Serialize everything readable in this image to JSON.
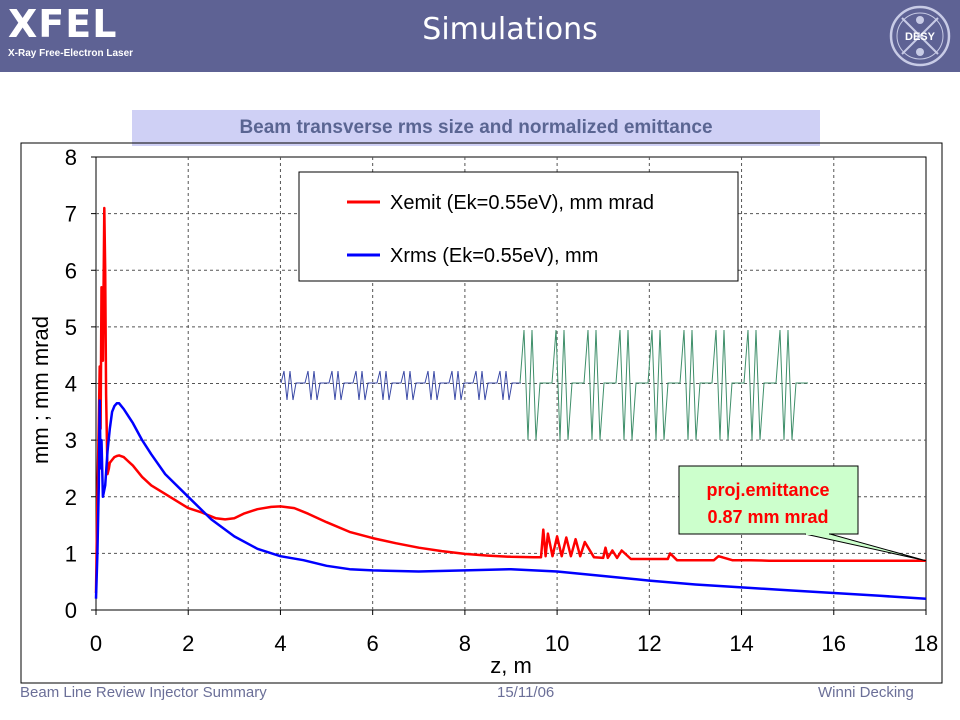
{
  "header": {
    "logo_main": "XFEL",
    "logo_sub": "X-Ray Free-Electron Laser",
    "title": "Simulations",
    "right_logo": "DESY"
  },
  "footer": {
    "left": "Beam Line Review Injector Summary",
    "center": "15/11/06",
    "right": "Winni Decking"
  },
  "chart_data": {
    "type": "line",
    "title": "Beam transverse rms size and normalized emittance",
    "xlabel": "z, m",
    "ylabel": "mm ; mm mrad",
    "xlim": [
      0,
      18
    ],
    "ylim": [
      0,
      8
    ],
    "xticks": [
      0,
      2,
      4,
      6,
      8,
      10,
      12,
      14,
      16,
      18
    ],
    "yticks": [
      0,
      1,
      2,
      3,
      4,
      5,
      6,
      7,
      8
    ],
    "grid": true,
    "legend_position": "top-center",
    "series": [
      {
        "name": "Xemit (Ek=0.55eV), mm mrad",
        "color": "#ff0000",
        "x": [
          0,
          0.03,
          0.06,
          0.08,
          0.1,
          0.12,
          0.15,
          0.18,
          0.2,
          0.22,
          0.25,
          0.28,
          0.3,
          0.35,
          0.4,
          0.45,
          0.5,
          0.6,
          0.8,
          1.0,
          1.2,
          1.5,
          1.8,
          2.0,
          2.3,
          2.6,
          2.8,
          3.0,
          3.2,
          3.5,
          3.8,
          4.0,
          4.3,
          4.6,
          5.0,
          5.5,
          6.0,
          6.5,
          7.0,
          7.5,
          8.0,
          8.5,
          9.0,
          9.5,
          9.65,
          9.7,
          9.75,
          9.8,
          9.9,
          10.0,
          10.1,
          10.2,
          10.3,
          10.4,
          10.5,
          10.6,
          10.8,
          11.0,
          11.05,
          11.1,
          11.2,
          11.3,
          11.4,
          11.6,
          11.8,
          12.0,
          12.2,
          12.4,
          12.45,
          12.6,
          13.0,
          13.2,
          13.4,
          13.5,
          13.8,
          14.2,
          14.6,
          15.0,
          16.0,
          17.0,
          18.0
        ],
        "y": [
          0.3,
          2.0,
          3.3,
          4.3,
          3.2,
          5.7,
          4.4,
          7.1,
          6.0,
          3.8,
          2.4,
          2.5,
          2.6,
          2.65,
          2.7,
          2.72,
          2.73,
          2.7,
          2.55,
          2.35,
          2.2,
          2.05,
          1.9,
          1.8,
          1.72,
          1.62,
          1.6,
          1.62,
          1.7,
          1.78,
          1.82,
          1.83,
          1.8,
          1.7,
          1.55,
          1.38,
          1.27,
          1.18,
          1.1,
          1.04,
          0.99,
          0.96,
          0.94,
          0.93,
          0.93,
          1.42,
          0.95,
          1.35,
          0.95,
          1.3,
          0.95,
          1.28,
          0.95,
          1.25,
          0.95,
          1.2,
          0.93,
          0.92,
          1.1,
          0.92,
          1.05,
          0.92,
          1.05,
          0.9,
          0.9,
          0.9,
          0.9,
          0.9,
          1.0,
          0.88,
          0.88,
          0.88,
          0.88,
          0.95,
          0.88,
          0.88,
          0.87,
          0.87,
          0.87,
          0.87,
          0.87
        ]
      },
      {
        "name": "Xrms (Ek=0.55eV), mm",
        "color": "#0000ff",
        "x": [
          0,
          0.03,
          0.06,
          0.08,
          0.1,
          0.12,
          0.15,
          0.2,
          0.25,
          0.3,
          0.35,
          0.4,
          0.45,
          0.5,
          0.6,
          0.8,
          1.0,
          1.2,
          1.5,
          2.0,
          2.5,
          3.0,
          3.5,
          4.0,
          4.5,
          5.0,
          5.5,
          6.0,
          7.0,
          8.0,
          9.0,
          10.0,
          11.0,
          12.0,
          13.0,
          14.0,
          15.0,
          16.0,
          17.0,
          18.0
        ],
        "y": [
          0.2,
          1.0,
          2.2,
          3.7,
          2.5,
          3.0,
          2.0,
          2.2,
          2.8,
          3.2,
          3.5,
          3.6,
          3.65,
          3.65,
          3.55,
          3.3,
          3.0,
          2.75,
          2.4,
          2.0,
          1.6,
          1.3,
          1.08,
          0.95,
          0.88,
          0.78,
          0.72,
          0.7,
          0.68,
          0.7,
          0.72,
          0.68,
          0.6,
          0.52,
          0.45,
          0.4,
          0.35,
          0.3,
          0.25,
          0.2
        ]
      }
    ],
    "annotation": {
      "text_line1": "proj.emittance",
      "text_line2": "0.87 mm mrad",
      "point_x": 18,
      "point_y": 0.87,
      "background": "#ccffcc",
      "text_color": "#ff0000"
    }
  }
}
